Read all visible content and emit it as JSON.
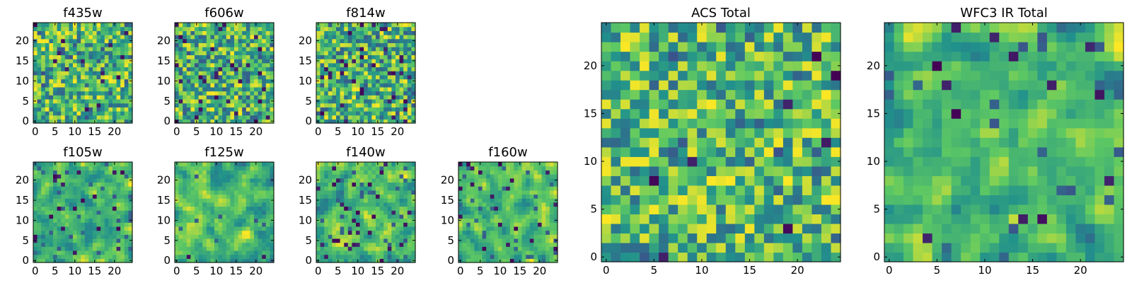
{
  "figure": {
    "background": "#ffffff",
    "colormap": "viridis",
    "colormap_stops": [
      "#440154",
      "#3b528b",
      "#21918c",
      "#5ec962",
      "#fde725"
    ]
  },
  "chart_data": [
    {
      "type": "heatmap",
      "title": "f435w",
      "grid_size": 25,
      "xlim": [
        0,
        24
      ],
      "ylim": [
        0,
        24
      ],
      "xticks": [
        "0",
        "5",
        "10",
        "15",
        "20"
      ],
      "yticks": [
        "0",
        "5",
        "10",
        "15",
        "20"
      ],
      "texture": "fine",
      "seed": 11,
      "dark_frac": 0.03
    },
    {
      "type": "heatmap",
      "title": "f606w",
      "grid_size": 25,
      "xlim": [
        0,
        24
      ],
      "ylim": [
        0,
        24
      ],
      "xticks": [
        "0",
        "5",
        "10",
        "15",
        "20"
      ],
      "yticks": [
        "0",
        "5",
        "10",
        "15",
        "20"
      ],
      "texture": "fine",
      "seed": 23,
      "dark_frac": 0.05
    },
    {
      "type": "heatmap",
      "title": "f814w",
      "grid_size": 25,
      "xlim": [
        0,
        24
      ],
      "ylim": [
        0,
        24
      ],
      "xticks": [
        "0",
        "5",
        "10",
        "15",
        "20"
      ],
      "yticks": [
        "0",
        "5",
        "10",
        "15",
        "20"
      ],
      "texture": "fine",
      "seed": 37,
      "dark_frac": 0.05
    },
    {
      "type": "heatmap",
      "title": "f105w",
      "grid_size": 25,
      "xlim": [
        0,
        24
      ],
      "ylim": [
        0,
        24
      ],
      "xticks": [
        "0",
        "5",
        "10",
        "15",
        "20"
      ],
      "yticks": [
        "0",
        "5",
        "10",
        "15",
        "20"
      ],
      "texture": "smooth",
      "seed": 41,
      "dark_frac": 0.03
    },
    {
      "type": "heatmap",
      "title": "f125w",
      "grid_size": 25,
      "xlim": [
        0,
        24
      ],
      "ylim": [
        0,
        24
      ],
      "xticks": [
        "0",
        "5",
        "10",
        "15",
        "20"
      ],
      "yticks": [
        "0",
        "5",
        "10",
        "15",
        "20"
      ],
      "texture": "smooth",
      "seed": 53,
      "dark_frac": 0.01
    },
    {
      "type": "heatmap",
      "title": "f140w",
      "grid_size": 25,
      "xlim": [
        0,
        24
      ],
      "ylim": [
        0,
        24
      ],
      "xticks": [
        "0",
        "5",
        "10",
        "15",
        "20"
      ],
      "yticks": [
        "0",
        "5",
        "10",
        "15",
        "20"
      ],
      "texture": "smooth",
      "seed": 67,
      "dark_frac": 0.03
    },
    {
      "type": "heatmap",
      "title": "f160w",
      "grid_size": 25,
      "xlim": [
        0,
        24
      ],
      "ylim": [
        0,
        24
      ],
      "xticks": [
        "0",
        "5",
        "10",
        "15",
        "20"
      ],
      "yticks": [
        "0",
        "5",
        "10",
        "15",
        "20"
      ],
      "texture": "smooth",
      "seed": 79,
      "dark_frac": 0.04
    },
    {
      "type": "heatmap",
      "title": "ACS Total",
      "grid_size": 25,
      "xlim": [
        0,
        24
      ],
      "ylim": [
        0,
        24
      ],
      "xticks": [
        "0",
        "5",
        "10",
        "15",
        "20"
      ],
      "yticks": [
        "0",
        "5",
        "10",
        "15",
        "20"
      ],
      "texture": "fine",
      "seed": 97,
      "dark_frac": 0.02
    },
    {
      "type": "heatmap",
      "title": "WFC3 IR Total",
      "grid_size": 25,
      "xlim": [
        0,
        24
      ],
      "ylim": [
        0,
        24
      ],
      "xticks": [
        "0",
        "5",
        "10",
        "15",
        "20"
      ],
      "yticks": [
        "0",
        "5",
        "10",
        "15",
        "20"
      ],
      "texture": "smooth",
      "seed": 113,
      "dark_frac": 0.02
    }
  ]
}
